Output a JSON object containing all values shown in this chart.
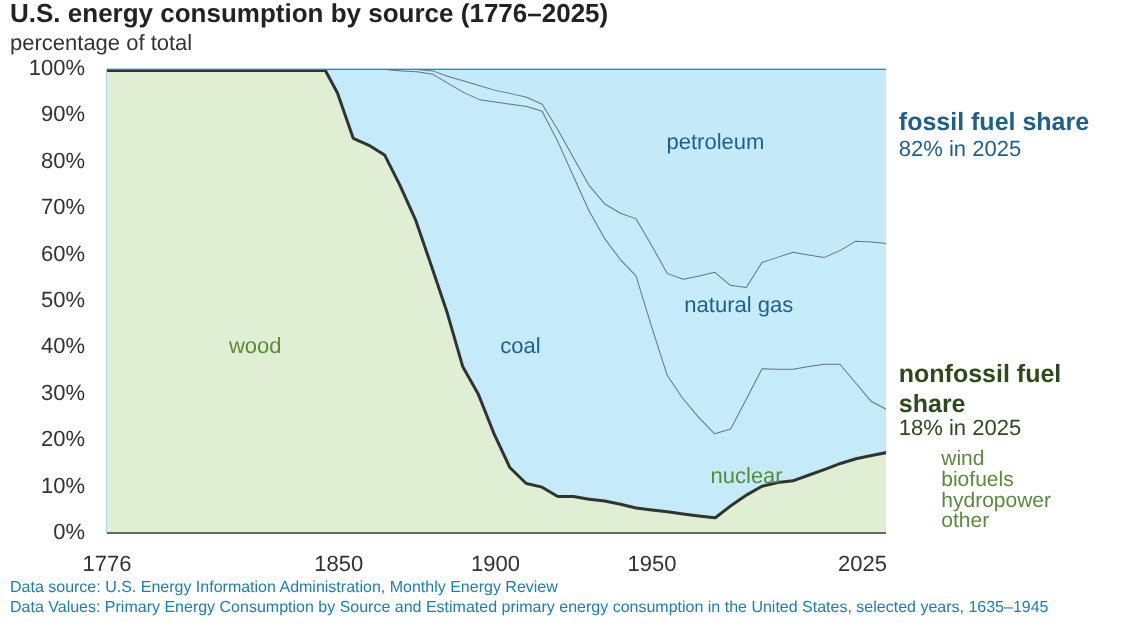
{
  "chart_data": {
    "type": "area",
    "stacked": true,
    "title": "U.S. energy consumption by source (1776–2025)",
    "subtitle": "percentage of total",
    "x": [
      1776,
      1846,
      1850,
      1855,
      1860,
      1865,
      1870,
      1875,
      1880,
      1885,
      1890,
      1895,
      1900,
      1905,
      1910,
      1915,
      1920,
      1925,
      1930,
      1935,
      1940,
      1945,
      1950,
      1955,
      1960,
      1965,
      1970,
      1975,
      1980,
      1985,
      1990,
      1995,
      2000,
      2005,
      2010,
      2015,
      2020,
      2025
    ],
    "series": [
      {
        "color": "#e0efd3",
        "values": [
          100,
          100,
          95,
          85.3,
          83.8,
          81.7,
          75,
          67.5,
          57.7,
          47.7,
          36,
          30,
          21.5,
          14.3,
          11,
          10.2,
          8.2,
          8.2,
          7.6,
          7.2,
          6.5,
          5.7,
          5.3,
          4.9,
          4.4,
          4,
          3.6,
          6.2,
          8.5,
          10.4,
          11.2,
          11.6,
          12.8,
          14,
          15.3,
          16.3,
          17,
          17.7
        ]
      },
      {
        "color": "#c5ebfb",
        "values": [
          0,
          0,
          5,
          14.7,
          16.2,
          18.3,
          24.7,
          32,
          41.3,
          49.3,
          59,
          63.5,
          71.5,
          78.2,
          81,
          80.8,
          76.3,
          68.8,
          61.9,
          56.3,
          52.5,
          49.8,
          39.2,
          29.1,
          24.6,
          21,
          17.9,
          16.3,
          20.5,
          25.1,
          24.2,
          23.8,
          23.2,
          22.5,
          21.2,
          16.2,
          11.5,
          9
        ]
      },
      {
        "color": "#c6ecfc",
        "values": [
          0,
          0,
          0,
          0,
          0,
          0,
          0.3,
          0.5,
          0.7,
          1.5,
          2.5,
          3,
          2.5,
          2.3,
          2,
          1.5,
          2.5,
          4,
          5.5,
          7.5,
          10,
          12.3,
          17.5,
          22,
          25.8,
          30.5,
          34.8,
          31,
          24,
          22.9,
          24.1,
          25.2,
          24,
          23,
          24.5,
          30.5,
          34.3,
          35.8
        ]
      },
      {
        "color": "#c4eafa",
        "values": [
          0,
          0,
          0,
          0,
          0,
          0,
          0,
          0,
          0.3,
          1.5,
          2.5,
          3.5,
          4.5,
          5.2,
          6,
          7.5,
          13,
          19,
          25,
          29,
          31,
          32.2,
          38,
          44,
          45.2,
          44.5,
          43.7,
          46.5,
          47,
          41.6,
          40.5,
          39.4,
          40,
          40.5,
          39,
          37,
          37.2,
          37.5
        ]
      }
    ],
    "xlim": [
      1776,
      2025
    ],
    "xticks": [
      1776,
      1850,
      1900,
      1950,
      2025
    ],
    "ylim": [
      0,
      100
    ],
    "yticks": [
      {
        "value": 0,
        "label": "0%"
      },
      {
        "value": 10,
        "label": "10%"
      },
      {
        "value": 20,
        "label": "20%"
      },
      {
        "value": 30,
        "label": "30%"
      },
      {
        "value": 40,
        "label": "40%"
      },
      {
        "value": 50,
        "label": "50%"
      },
      {
        "value": 60,
        "label": "60%"
      },
      {
        "value": 70,
        "label": "70%"
      },
      {
        "value": 80,
        "label": "80%"
      },
      {
        "value": 90,
        "label": "90%"
      },
      {
        "value": 100,
        "label": "100%"
      }
    ],
    "annotations": [
      "wood",
      "coal",
      "petroleum",
      "natural gas",
      "nuclear",
      "fossil fuel share",
      "82% in 2025",
      "nonfossil fuel share",
      "18% in 2025",
      "wind",
      "biofuels",
      "hydropower",
      "other",
      "Data source: U.S. Energy Information Administration, Monthly Energy Review",
      "Data Values: Primary Energy Consumption by Source and Estimated primary energy consumption in the United States, selected years, 1635–1945"
    ]
  }
}
